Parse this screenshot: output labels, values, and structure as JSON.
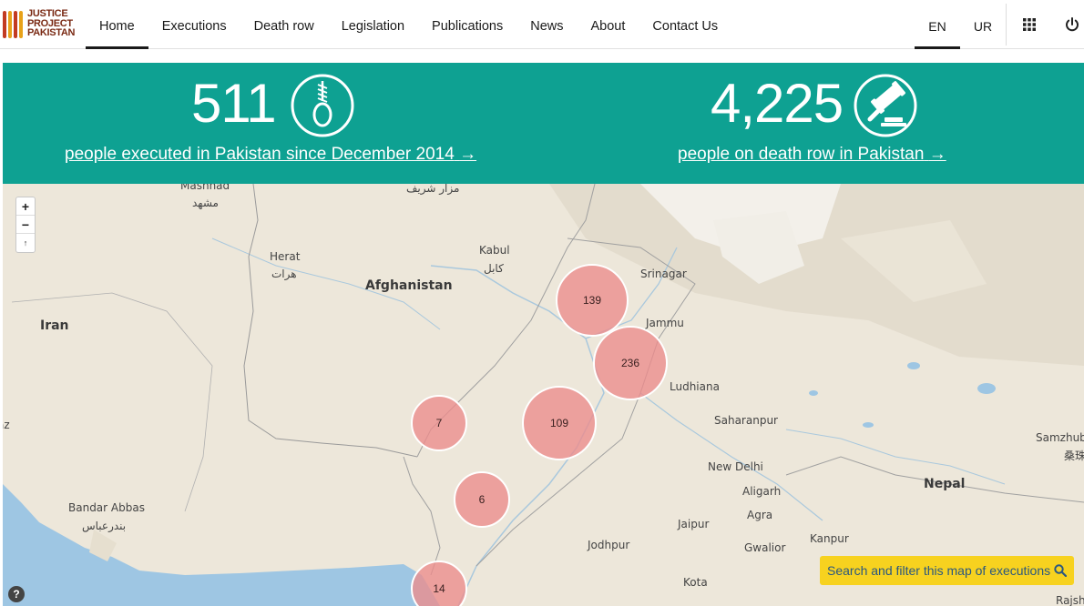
{
  "brand": {
    "logo_lines": [
      "JUSTICE",
      "PROJECT",
      "PAKISTAN"
    ],
    "accent": "#0ea192",
    "logo_color": "#c23b22"
  },
  "nav": {
    "links": [
      "Home",
      "Executions",
      "Death row",
      "Legislation",
      "Publications",
      "News",
      "About",
      "Contact Us"
    ],
    "active": "Home",
    "lang_en": "EN",
    "lang_ur": "UR",
    "grid_icon": "apps-grid-icon",
    "power_icon": "power-icon"
  },
  "stats": {
    "executed": {
      "number": "511",
      "link_text": "people executed in Pakistan since December 2014",
      "icon": "noose-icon"
    },
    "death_row": {
      "number": "4,225",
      "link_text": "people on death row in Pakistan",
      "icon": "gavel-icon"
    },
    "arrow": "→"
  },
  "map": {
    "zoom_in": "+",
    "zoom_out": "−",
    "reset_north": "↑",
    "labels": {
      "mashhad_en": "Mashhad",
      "mashhad_fa": "مشهد",
      "mazar": "مزار شریف",
      "herat_en": "Herat",
      "herat_fa": "هرات",
      "kabul_en": "Kabul",
      "kabul_fa": "کابل",
      "afghanistan": "Afghanistan",
      "iran": "Iran",
      "srinagar": "Srinagar",
      "jammu": "Jammu",
      "ludhiana": "Ludhiana",
      "saharanpur": "Saharanpur",
      "new_delhi": "New Delhi",
      "aligarh": "Aligarh",
      "agra": "Agra",
      "jaipur": "Jaipur",
      "jodhpur": "Jodhpur",
      "gwalior": "Gwalior",
      "kanpur": "Kanpur",
      "kota": "Kota",
      "nepal": "Nepal",
      "samzhub_en": "Samzhub",
      "samzhub_zh": "桑珠",
      "bandar_en": "Bandar Abbas",
      "bandar_fa": "بندرعباس",
      "rajsh": "Rajsh",
      "edge_z": "az"
    },
    "clusters": [
      {
        "count": "139"
      },
      {
        "count": "236"
      },
      {
        "count": "109"
      },
      {
        "count": "7"
      },
      {
        "count": "6"
      },
      {
        "count": "14"
      }
    ],
    "help": "?",
    "search_button": "Search and filter this map of executions",
    "search_icon": "search-icon"
  }
}
